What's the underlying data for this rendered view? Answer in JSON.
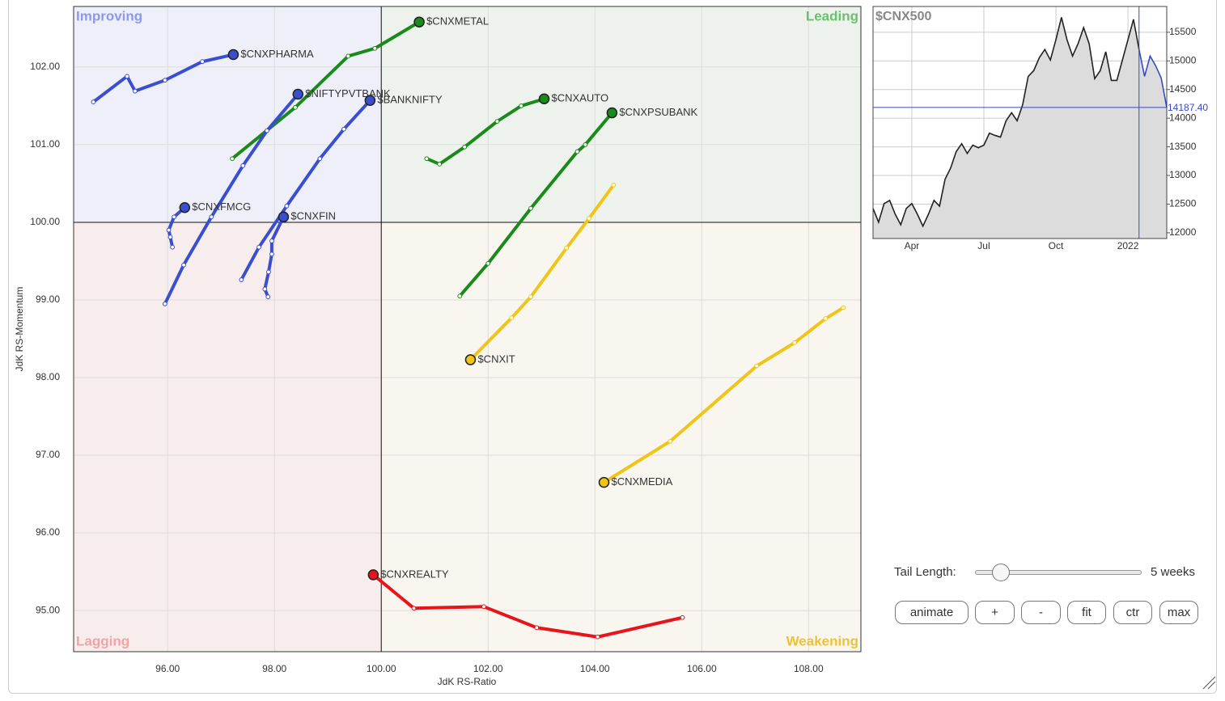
{
  "chart_data": [
    {
      "type": "rrg",
      "x_label": "JdK RS-Ratio",
      "y_label": "JdK RS-Momentum",
      "quadrants": [
        "Improving",
        "Leading",
        "Lagging",
        "Weakening"
      ],
      "center": [
        100,
        100
      ],
      "xlim": [
        94.24,
        108.98
      ],
      "ylim": [
        94.47,
        102.78
      ],
      "xticks": [
        {
          "value": 96,
          "label": "96.00"
        },
        {
          "value": 98,
          "label": "98.00"
        },
        {
          "value": 100,
          "label": "100.00"
        },
        {
          "value": 102,
          "label": "102.00"
        },
        {
          "value": 104,
          "label": "104.00"
        },
        {
          "value": 106,
          "label": "106.00"
        },
        {
          "value": 108,
          "label": "108.00"
        }
      ],
      "yticks": [
        {
          "value": 95,
          "label": "95.00"
        },
        {
          "value": 96,
          "label": "96.00"
        },
        {
          "value": 97,
          "label": "97.00"
        },
        {
          "value": 98,
          "label": "98.00"
        },
        {
          "value": 99,
          "label": "99.00"
        },
        {
          "value": 100,
          "label": "100.00"
        },
        {
          "value": 101,
          "label": "101.00"
        },
        {
          "value": 102,
          "label": "102.00"
        }
      ],
      "grid": true,
      "series": [
        {
          "name": "$CNXPHARMA",
          "color": "#3a4fd0",
          "x": [
            94.61,
            95.24,
            95.39,
            95.95,
            96.65,
            97.23
          ],
          "y": [
            101.55,
            101.88,
            101.69,
            101.83,
            102.07,
            102.16
          ]
        },
        {
          "name": "$CNXMETAL",
          "color": "#1a8a1a",
          "x": [
            97.21,
            98.39,
            99.38,
            99.88,
            100.71
          ],
          "y": [
            100.82,
            101.48,
            102.14,
            102.24,
            102.58
          ]
        },
        {
          "name": "$NIFTYPVTBANK",
          "color": "#3a4fd0",
          "x": [
            95.95,
            96.3,
            96.82,
            97.41,
            97.86,
            98.44
          ],
          "y": [
            98.95,
            99.45,
            100.07,
            100.73,
            101.18,
            101.65
          ]
        },
        {
          "name": "$BANKNIFTY",
          "color": "#3a4fd0",
          "x": [
            97.38,
            97.71,
            98.23,
            98.85,
            99.3,
            99.79
          ],
          "y": [
            99.26,
            99.68,
            100.21,
            100.82,
            101.2,
            101.57
          ]
        },
        {
          "name": "$CNXFMCG",
          "color": "#3a4fd0",
          "x": [
            96.09,
            96.05,
            96.02,
            96.12,
            96.32
          ],
          "y": [
            99.68,
            99.81,
            99.9,
            100.07,
            100.19
          ]
        },
        {
          "name": "$CNXFIN",
          "color": "#3a4fd0",
          "x": [
            97.88,
            97.82,
            97.89,
            97.95,
            97.95,
            98.17
          ],
          "y": [
            99.04,
            99.14,
            99.36,
            99.59,
            99.76,
            100.07
          ]
        },
        {
          "name": "$CNXAUTO",
          "color": "#1a8a1a",
          "x": [
            100.85,
            101.09,
            101.56,
            102.17,
            102.62,
            103.05
          ],
          "y": [
            100.82,
            100.75,
            100.97,
            101.3,
            101.5,
            101.59
          ]
        },
        {
          "name": "$CNXPSUBANK",
          "color": "#1a8a1a",
          "x": [
            101.47,
            102.0,
            102.8,
            103.67,
            103.82,
            104.32
          ],
          "y": [
            99.05,
            99.47,
            100.18,
            100.91,
            101.0,
            101.41
          ]
        },
        {
          "name": "$CNXIT",
          "color": "#f0c419",
          "x": [
            104.35,
            103.89,
            103.47,
            102.8,
            102.44,
            101.67
          ],
          "y": [
            100.48,
            100.05,
            99.67,
            99.04,
            98.77,
            98.23
          ]
        },
        {
          "name": "$CNXMEDIA",
          "color": "#f0c419",
          "x": [
            108.65,
            108.32,
            107.74,
            107.03,
            105.41,
            104.17
          ],
          "y": [
            98.9,
            98.76,
            98.45,
            98.15,
            97.18,
            96.65
          ]
        },
        {
          "name": "$CNXREALTY",
          "color": "#e8141c",
          "x": [
            105.64,
            104.05,
            102.91,
            101.92,
            100.61,
            99.85
          ],
          "y": [
            94.91,
            94.66,
            94.78,
            95.05,
            95.03,
            95.46
          ]
        }
      ]
    },
    {
      "type": "line",
      "title": "$CNX500",
      "categories": [
        null,
        null,
        null,
        null,
        null,
        null,
        null,
        "Apr",
        null,
        null,
        null,
        null,
        null,
        null,
        null,
        null,
        null,
        null,
        null,
        null,
        "Jul",
        null,
        null,
        null,
        null,
        null,
        null,
        null,
        null,
        null,
        null,
        null,
        null,
        "Oct",
        null,
        null,
        null,
        null,
        null,
        null,
        null,
        null,
        null,
        null,
        null,
        null,
        "2022",
        null,
        null,
        null,
        null,
        null,
        null,
        null
      ],
      "ylim": [
        11900,
        15950
      ],
      "yticks": [
        12000,
        12500,
        13000,
        13500,
        14000,
        14500,
        15000,
        15500
      ],
      "grid": true,
      "series": [
        {
          "color": "#222222",
          "values": [
            12425,
            12185,
            12510,
            12565,
            12325,
            12140,
            12425,
            12510,
            12325,
            12115,
            12325,
            12565,
            12465,
            12935,
            13130,
            13415,
            13555,
            13385,
            13530,
            13485,
            13530,
            13740,
            13700,
            13670,
            13955,
            14095,
            13955,
            14235,
            14730,
            14830,
            15055,
            15200,
            15015,
            15370,
            15760,
            15370,
            15085,
            15300,
            15580,
            15300,
            14690,
            14830,
            15160,
            14660,
            14660,
            15015,
            15370,
            15725,
            15200,
            null,
            null,
            null,
            null,
            null
          ]
        },
        {
          "color": "#3548c8",
          "values": [
            null,
            null,
            null,
            null,
            null,
            null,
            null,
            null,
            null,
            null,
            null,
            null,
            null,
            null,
            null,
            null,
            null,
            null,
            null,
            null,
            null,
            null,
            null,
            null,
            null,
            null,
            null,
            null,
            null,
            null,
            null,
            null,
            null,
            null,
            null,
            null,
            null,
            null,
            null,
            null,
            null,
            null,
            null,
            null,
            null,
            null,
            null,
            null,
            15200,
            14730,
            15085,
            14915,
            14700,
            14187.4
          ],
          "value_labels": [
            null,
            null,
            null,
            null,
            null,
            null,
            null,
            null,
            null,
            null,
            null,
            null,
            null,
            null,
            null,
            null,
            null,
            null,
            null,
            null,
            null,
            null,
            null,
            null,
            null,
            null,
            null,
            null,
            null,
            null,
            null,
            null,
            null,
            null,
            null,
            null,
            null,
            null,
            null,
            null,
            null,
            null,
            null,
            null,
            null,
            null,
            null,
            null,
            null,
            null,
            null,
            null,
            null,
            "14187.40"
          ]
        }
      ]
    }
  ],
  "controls": {
    "tail_length_label": "Tail Length:",
    "tail_length_value": "5 weeks",
    "buttons": [
      "animate",
      "+",
      "-",
      "fit",
      "ctr",
      "max"
    ]
  }
}
